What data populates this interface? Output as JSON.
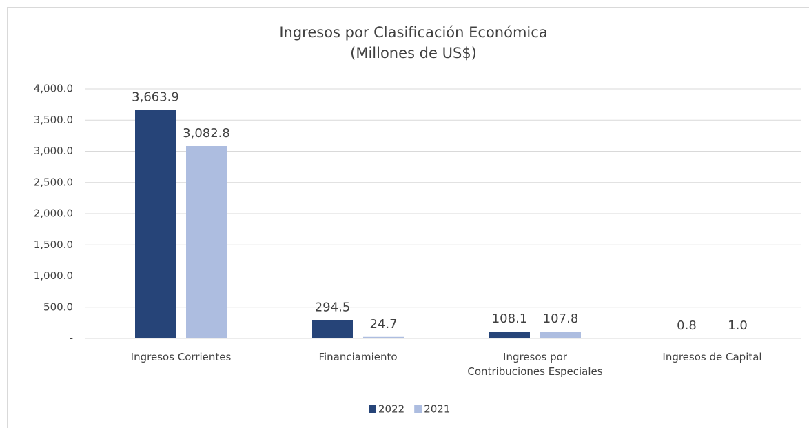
{
  "chart_data": {
    "type": "bar",
    "title": "Ingresos por Clasificación Económica",
    "subtitle": "(Millones de US$)",
    "categories": [
      "Ingresos Corrientes",
      "Financiamiento",
      "Ingresos por\nContribuciones Especiales",
      "Ingresos de Capital"
    ],
    "series": [
      {
        "name": "2022",
        "color": "#264478",
        "values": [
          3663.9,
          294.5,
          108.1,
          0.8
        ],
        "value_labels": [
          "3,663.9",
          "294.5",
          "108.1",
          "0.8"
        ]
      },
      {
        "name": "2021",
        "color": "#adbde0",
        "values": [
          3082.8,
          24.7,
          107.8,
          1.0
        ],
        "value_labels": [
          "3,082.8",
          "24.7",
          "107.8",
          "1.0"
        ]
      }
    ],
    "ylim": [
      0,
      4000
    ],
    "yticks": [
      {
        "value": 0,
        "label": "-"
      },
      {
        "value": 500,
        "label": "500.0"
      },
      {
        "value": 1000,
        "label": "1,000.0"
      },
      {
        "value": 1500,
        "label": "1,500.0"
      },
      {
        "value": 2000,
        "label": "2,000.0"
      },
      {
        "value": 2500,
        "label": "2,500.0"
      },
      {
        "value": 3000,
        "label": "3,000.0"
      },
      {
        "value": 3500,
        "label": "3,500.0"
      },
      {
        "value": 4000,
        "label": "4,000.0"
      }
    ],
    "grid": true,
    "legend": "bottom"
  }
}
